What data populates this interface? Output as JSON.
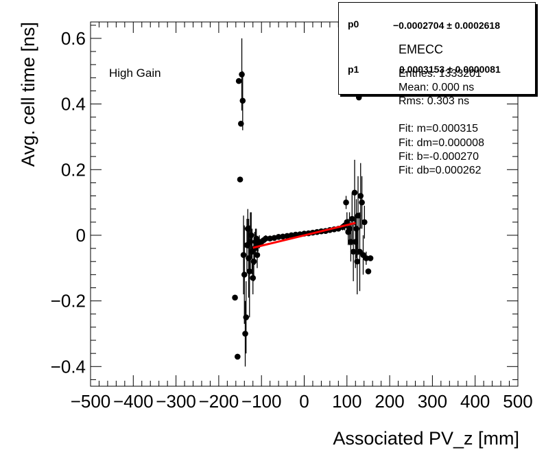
{
  "chart_data": {
    "type": "scatter",
    "title": "",
    "xlabel": "Associated PV_z [mm]",
    "ylabel": "Avg. cell time [ns]",
    "xlim": [
      -500,
      500
    ],
    "ylim": [
      -0.46,
      0.65
    ],
    "xticks": [
      -500,
      -400,
      -300,
      -200,
      -100,
      0,
      100,
      200,
      300,
      400,
      500
    ],
    "xtick_labels": [
      "−500",
      "−400",
      "−300",
      "−200",
      "−100",
      "0",
      "100",
      "200",
      "300",
      "400",
      "500"
    ],
    "yticks": [
      -0.4,
      -0.2,
      0,
      0.2,
      0.4,
      0.6
    ],
    "ytick_labels": [
      "−0.4",
      "−0.2",
      "0",
      "0.2",
      "0.4",
      "0.6"
    ],
    "annotation": "High Gain",
    "points": [
      {
        "x": -162,
        "y": -0.19,
        "err": 0.0
      },
      {
        "x": -156,
        "y": -0.37,
        "err": 0.0
      },
      {
        "x": -153,
        "y": 0.47,
        "err": 0.0
      },
      {
        "x": -150,
        "y": 0.17,
        "err": 0.0
      },
      {
        "x": -148,
        "y": 0.34,
        "err": 0.0
      },
      {
        "x": -146,
        "y": 0.49,
        "err": 0.11
      },
      {
        "x": -144,
        "y": 0.41,
        "err": 0.09
      },
      {
        "x": -142,
        "y": -0.06,
        "err": 0.12
      },
      {
        "x": -140,
        "y": -0.12,
        "err": 0.15
      },
      {
        "x": -138,
        "y": -0.3,
        "err": 0.1
      },
      {
        "x": -136,
        "y": -0.25,
        "err": 0.11
      },
      {
        "x": -134,
        "y": -0.03,
        "err": 0.08
      },
      {
        "x": -132,
        "y": 0.02,
        "err": 0.06
      },
      {
        "x": -130,
        "y": -0.07,
        "err": 0.12
      },
      {
        "x": -128,
        "y": -0.11,
        "err": 0.14
      },
      {
        "x": -126,
        "y": -0.02,
        "err": 0.09
      },
      {
        "x": -124,
        "y": 0.0,
        "err": 0.07
      },
      {
        "x": -122,
        "y": -0.05,
        "err": 0.07
      },
      {
        "x": -120,
        "y": -0.13,
        "err": 0.05
      },
      {
        "x": -118,
        "y": -0.08,
        "err": 0.06
      },
      {
        "x": -116,
        "y": -0.04,
        "err": 0.05
      },
      {
        "x": -114,
        "y": -0.02,
        "err": 0.04
      },
      {
        "x": -112,
        "y": -0.01,
        "err": 0.03
      },
      {
        "x": -110,
        "y": -0.06,
        "err": 0.04
      },
      {
        "x": -108,
        "y": -0.03,
        "err": 0.02
      },
      {
        "x": -105,
        "y": -0.02,
        "err": 0.02
      },
      {
        "x": -100,
        "y": -0.02,
        "err": 0.01
      },
      {
        "x": -95,
        "y": -0.015,
        "err": 0.01
      },
      {
        "x": -90,
        "y": -0.01,
        "err": 0.01
      },
      {
        "x": -80,
        "y": -0.01,
        "err": 0.005
      },
      {
        "x": -70,
        "y": -0.008,
        "err": 0.005
      },
      {
        "x": -60,
        "y": -0.005,
        "err": 0.005
      },
      {
        "x": -50,
        "y": -0.004,
        "err": 0.005
      },
      {
        "x": -40,
        "y": -0.002,
        "err": 0.005
      },
      {
        "x": -30,
        "y": 0.0,
        "err": 0.005
      },
      {
        "x": -20,
        "y": 0.002,
        "err": 0.005
      },
      {
        "x": -10,
        "y": 0.003,
        "err": 0.005
      },
      {
        "x": 0,
        "y": 0.005,
        "err": 0.005
      },
      {
        "x": 10,
        "y": 0.006,
        "err": 0.005
      },
      {
        "x": 20,
        "y": 0.008,
        "err": 0.005
      },
      {
        "x": 30,
        "y": 0.01,
        "err": 0.005
      },
      {
        "x": 40,
        "y": 0.012,
        "err": 0.005
      },
      {
        "x": 50,
        "y": 0.013,
        "err": 0.005
      },
      {
        "x": 60,
        "y": 0.016,
        "err": 0.005
      },
      {
        "x": 70,
        "y": 0.018,
        "err": 0.006
      },
      {
        "x": 80,
        "y": 0.02,
        "err": 0.008
      },
      {
        "x": 90,
        "y": 0.025,
        "err": 0.01
      },
      {
        "x": 95,
        "y": 0.03,
        "err": 0.015
      },
      {
        "x": 98,
        "y": 0.1,
        "err": 0.02
      },
      {
        "x": 100,
        "y": 0.04,
        "err": 0.03
      },
      {
        "x": 103,
        "y": 0.01,
        "err": 0.04
      },
      {
        "x": 106,
        "y": 0.02,
        "err": 0.05
      },
      {
        "x": 109,
        "y": -0.02,
        "err": 0.06
      },
      {
        "x": 112,
        "y": 0.05,
        "err": 0.08
      },
      {
        "x": 115,
        "y": -0.05,
        "err": 0.09
      },
      {
        "x": 118,
        "y": 0.13,
        "err": 0.1
      },
      {
        "x": 120,
        "y": -0.02,
        "err": 0.08
      },
      {
        "x": 122,
        "y": 0.02,
        "err": 0.09
      },
      {
        "x": 124,
        "y": -0.08,
        "err": 0.1
      },
      {
        "x": 126,
        "y": 0.06,
        "err": 0.12
      },
      {
        "x": 128,
        "y": 0.42,
        "err": 0.0
      },
      {
        "x": 130,
        "y": -0.05,
        "err": 0.12
      },
      {
        "x": 132,
        "y": 0.12,
        "err": 0.1
      },
      {
        "x": 135,
        "y": 0.1,
        "err": 0.08
      },
      {
        "x": 138,
        "y": -0.06,
        "err": 0.06
      },
      {
        "x": 141,
        "y": 0.04,
        "err": 0.05
      },
      {
        "x": 145,
        "y": -0.07,
        "err": 0.02
      },
      {
        "x": 150,
        "y": -0.11,
        "err": 0.0
      },
      {
        "x": 155,
        "y": -0.07,
        "err": 0.0
      }
    ],
    "fit_line": {
      "x_start": -120,
      "x_end": 120,
      "m": 0.000315,
      "b": -0.00027,
      "color": "#ff0000"
    },
    "fit_box": {
      "rows": [
        {
          "name": "p0",
          "value": "−0.0002704 ± 0.0002618"
        },
        {
          "name": "p1",
          "value": "0.0003153 ± 0.0000081"
        }
      ]
    },
    "stats": {
      "title": "EMECC",
      "lines": [
        "Entries: 1333201",
        "Mean: 0.000 ns",
        "Rms: 0.303 ns",
        "Fit: m=0.000315",
        "Fit: dm=0.000008",
        "Fit: b=-0.000270",
        "Fit: db=0.000262"
      ]
    },
    "marker_color": "#000000"
  }
}
